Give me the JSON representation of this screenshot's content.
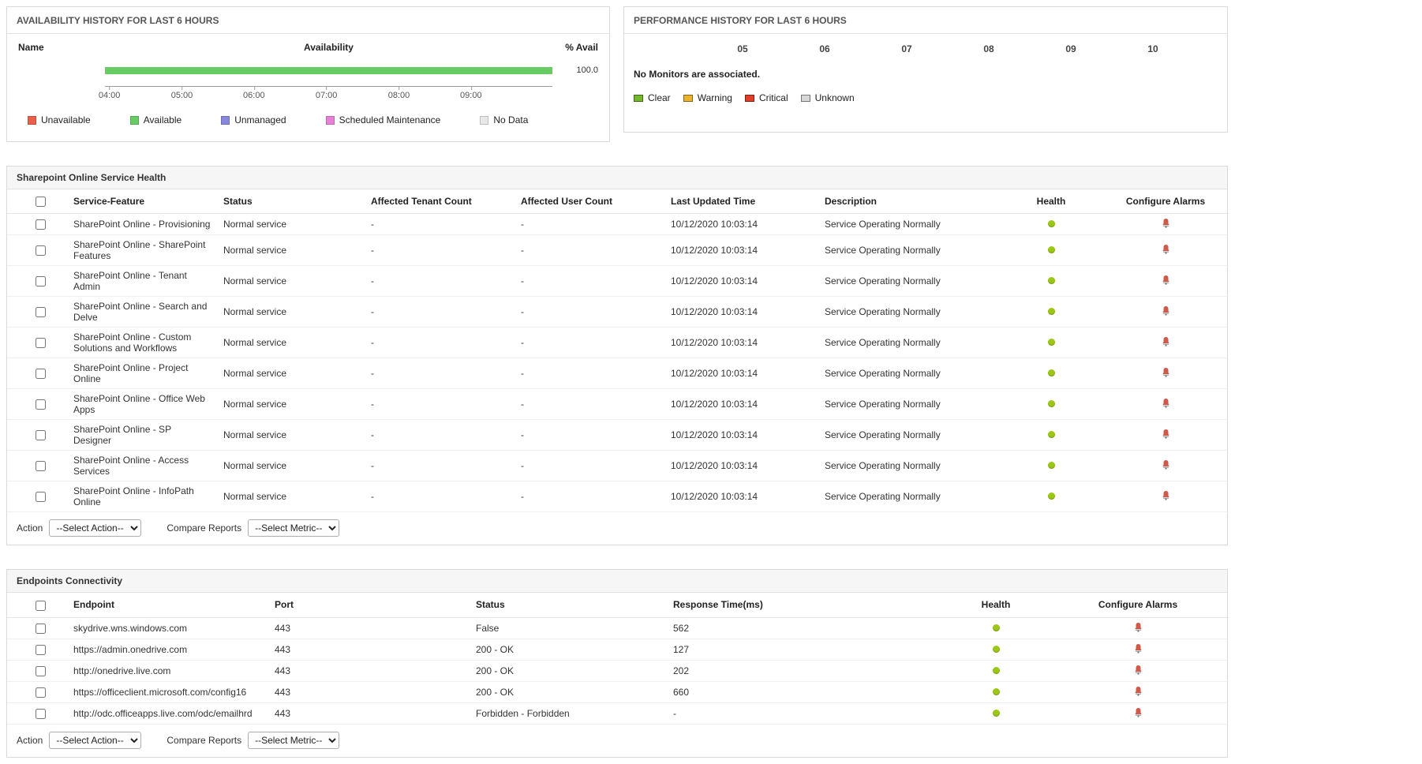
{
  "availability_panel": {
    "title": "AVAILABILITY HISTORY FOR LAST 6 HOURS",
    "header": {
      "name": "Name",
      "availability": "Availability",
      "percent_avail": "% Avail"
    },
    "chart_data": {
      "type": "bar",
      "orientation": "horizontal",
      "title": "Availability History For Last 6 Hours",
      "x_ticks": [
        "04:00",
        "05:00",
        "06:00",
        "07:00",
        "08:00",
        "09:00"
      ],
      "series": [
        {
          "name": "Available",
          "value": 100.0,
          "color": "#66cc63"
        }
      ],
      "value_label": "100.0",
      "ylim": [
        0,
        100
      ],
      "legend_position": "bottom"
    },
    "legend": [
      {
        "label": "Unavailable",
        "color": "#e8604c"
      },
      {
        "label": "Available",
        "color": "#66cc63"
      },
      {
        "label": "Unmanaged",
        "color": "#8787dd"
      },
      {
        "label": "Scheduled Maintenance",
        "color": "#e87fd8"
      },
      {
        "label": "No Data",
        "color": "#e8e8e8"
      }
    ]
  },
  "performance_panel": {
    "title": "PERFORMANCE HISTORY FOR LAST 6 HOURS",
    "time_labels": [
      "05",
      "06",
      "07",
      "08",
      "09",
      "10"
    ],
    "message": "No Monitors are associated.",
    "legend": [
      {
        "label": "Clear",
        "color": "#75b82a"
      },
      {
        "label": "Warning",
        "color": "#edb52f"
      },
      {
        "label": "Critical",
        "color": "#e03e28"
      },
      {
        "label": "Unknown",
        "color": "#d8d8d8"
      }
    ]
  },
  "service_health": {
    "title": "Sharepoint Online Service Health",
    "columns": [
      "Service-Feature",
      "Status",
      "Affected Tenant Count",
      "Affected User Count",
      "Last Updated Time",
      "Description",
      "Health",
      "Configure Alarms"
    ],
    "rows": [
      {
        "feature": "SharePoint Online - Provisioning",
        "status": "Normal service",
        "tenant": "-",
        "user": "-",
        "updated": "10/12/2020 10:03:14",
        "description": "Service Operating Normally",
        "health": "ok"
      },
      {
        "feature": "SharePoint Online - SharePoint Features",
        "status": "Normal service",
        "tenant": "-",
        "user": "-",
        "updated": "10/12/2020 10:03:14",
        "description": "Service Operating Normally",
        "health": "ok"
      },
      {
        "feature": "SharePoint Online - Tenant Admin",
        "status": "Normal service",
        "tenant": "-",
        "user": "-",
        "updated": "10/12/2020 10:03:14",
        "description": "Service Operating Normally",
        "health": "ok"
      },
      {
        "feature": "SharePoint Online - Search and Delve",
        "status": "Normal service",
        "tenant": "-",
        "user": "-",
        "updated": "10/12/2020 10:03:14",
        "description": "Service Operating Normally",
        "health": "ok"
      },
      {
        "feature": "SharePoint Online - Custom Solutions and Workflows",
        "status": "Normal service",
        "tenant": "-",
        "user": "-",
        "updated": "10/12/2020 10:03:14",
        "description": "Service Operating Normally",
        "health": "ok"
      },
      {
        "feature": "SharePoint Online - Project Online",
        "status": "Normal service",
        "tenant": "-",
        "user": "-",
        "updated": "10/12/2020 10:03:14",
        "description": "Service Operating Normally",
        "health": "ok"
      },
      {
        "feature": "SharePoint Online - Office Web Apps",
        "status": "Normal service",
        "tenant": "-",
        "user": "-",
        "updated": "10/12/2020 10:03:14",
        "description": "Service Operating Normally",
        "health": "ok"
      },
      {
        "feature": "SharePoint Online - SP Designer",
        "status": "Normal service",
        "tenant": "-",
        "user": "-",
        "updated": "10/12/2020 10:03:14",
        "description": "Service Operating Normally",
        "health": "ok"
      },
      {
        "feature": "SharePoint Online - Access Services",
        "status": "Normal service",
        "tenant": "-",
        "user": "-",
        "updated": "10/12/2020 10:03:14",
        "description": "Service Operating Normally",
        "health": "ok"
      },
      {
        "feature": "SharePoint Online - InfoPath Online",
        "status": "Normal service",
        "tenant": "-",
        "user": "-",
        "updated": "10/12/2020 10:03:14",
        "description": "Service Operating Normally",
        "health": "ok"
      }
    ],
    "action_label": "Action",
    "action_option": "--Select Action--",
    "compare_label": "Compare Reports",
    "compare_option": "--Select Metric--"
  },
  "endpoints": {
    "title": "Endpoints Connectivity",
    "columns": [
      "Endpoint",
      "Port",
      "Status",
      "Response Time(ms)",
      "Health",
      "Configure Alarms"
    ],
    "rows": [
      {
        "endpoint": "skydrive.wns.windows.com",
        "port": "443",
        "status": "False",
        "response_time": "562",
        "health": "ok"
      },
      {
        "endpoint": "https://admin.onedrive.com",
        "port": "443",
        "status": "200 - OK",
        "response_time": "127",
        "health": "ok"
      },
      {
        "endpoint": "http://onedrive.live.com",
        "port": "443",
        "status": "200 - OK",
        "response_time": "202",
        "health": "ok"
      },
      {
        "endpoint": "https://officeclient.microsoft.com/config16",
        "port": "443",
        "status": "200 - OK",
        "response_time": "660",
        "health": "ok"
      },
      {
        "endpoint": "http://odc.officeapps.live.com/odc/emailhrd",
        "port": "443",
        "status": "Forbidden - Forbidden",
        "response_time": "-",
        "health": "ok"
      }
    ],
    "action_label": "Action",
    "action_option": "--Select Action--",
    "compare_label": "Compare Reports",
    "compare_option": "--Select Metric--"
  }
}
